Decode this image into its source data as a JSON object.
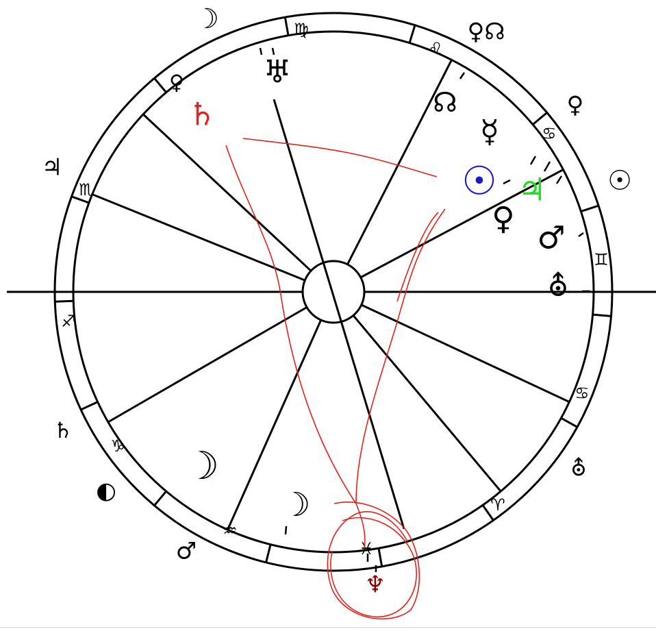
{
  "signs": [
    "♍",
    "♌",
    "♋",
    "♊",
    "♋",
    "♈",
    "♓",
    "♒",
    "♑",
    "♐",
    "♏"
  ],
  "outer_planets": [
    "☽",
    "♀☊",
    "♀",
    "☉",
    "⛢",
    "♆",
    "♂",
    "◐",
    "♄",
    "♃",
    "♀"
  ],
  "inner_planets": [
    "♅",
    "♄",
    "☊",
    "☿",
    "☉",
    "♃",
    "♀",
    "♂",
    "⛢",
    "☽",
    "☽"
  ]
}
